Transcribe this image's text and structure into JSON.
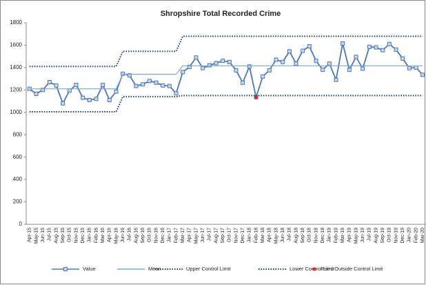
{
  "chart_data": {
    "type": "line",
    "title": "Shropshire Total Recorded Crime",
    "categories": [
      "Apr-15",
      "May-15",
      "Jun-15",
      "Jul-15",
      "Aug-15",
      "Sep-15",
      "Oct-15",
      "Nov-15",
      "Dec-15",
      "Jan-16",
      "Feb-16",
      "Mar-16",
      "Apr-16",
      "May-16",
      "Jun-16",
      "Jul-16",
      "Aug-16",
      "Sep-16",
      "Oct-16",
      "Nov-16",
      "Dec-16",
      "Jan-17",
      "Feb-17",
      "Mar-17",
      "Apr-17",
      "May-17",
      "Jun-17",
      "Jul-17",
      "Aug-17",
      "Sep-17",
      "Oct-17",
      "Nov-17",
      "Dec-17",
      "Jan-18",
      "Feb-18",
      "Mar-18",
      "Apr-18",
      "May-18",
      "Jun-18",
      "Jul-18",
      "Aug-18",
      "Sep-18",
      "Oct-18",
      "Nov-18",
      "Dec-18",
      "Jan-19",
      "Feb-19",
      "Mar-19",
      "Apr-19",
      "May-19",
      "Jun-19",
      "Jul-19",
      "Aug-19",
      "Sep-19",
      "Oct-19",
      "Nov-19",
      "Dec-19",
      "Jan-20",
      "Feb-20",
      "Mar-20"
    ],
    "series": [
      {
        "name": "Value",
        "color": "#4a76b8",
        "marker": "square",
        "values": [
          1210,
          1165,
          1200,
          1270,
          1240,
          1080,
          1195,
          1245,
          1130,
          1110,
          1120,
          1245,
          1110,
          1185,
          1345,
          1330,
          1235,
          1250,
          1280,
          1265,
          1240,
          1235,
          1170,
          1360,
          1405,
          1490,
          1395,
          1420,
          1440,
          1460,
          1450,
          1375,
          1265,
          1410,
          1135,
          1320,
          1375,
          1470,
          1450,
          1545,
          1435,
          1550,
          1590,
          1460,
          1380,
          1435,
          1290,
          1615,
          1380,
          1495,
          1390,
          1585,
          1580,
          1555,
          1610,
          1560,
          1480,
          1395,
          1400,
          1335
        ]
      },
      {
        "name": "Mean",
        "color": "#7aa6d8",
        "values": [
          1210,
          1210,
          1210,
          1210,
          1210,
          1210,
          1210,
          1210,
          1210,
          1210,
          1210,
          1210,
          1210,
          1210,
          1340,
          1340,
          1340,
          1340,
          1340,
          1340,
          1340,
          1340,
          1340,
          1415,
          1415,
          1415,
          1415,
          1415,
          1415,
          1415,
          1415,
          1415,
          1415,
          1415,
          1415,
          1415,
          1415,
          1415,
          1415,
          1415,
          1415,
          1415,
          1415,
          1415,
          1415,
          1415,
          1415,
          1415,
          1415,
          1415,
          1415,
          1415,
          1415,
          1415,
          1415,
          1415,
          1415,
          1415,
          1415,
          1415
        ]
      },
      {
        "name": "Upper Control Limit",
        "color": "#1f3864",
        "dash": "dotted",
        "values": [
          1410,
          1410,
          1410,
          1410,
          1410,
          1410,
          1410,
          1410,
          1410,
          1410,
          1410,
          1410,
          1410,
          1410,
          1545,
          1545,
          1545,
          1545,
          1545,
          1545,
          1545,
          1545,
          1545,
          1680,
          1680,
          1680,
          1680,
          1680,
          1680,
          1680,
          1680,
          1680,
          1680,
          1680,
          1680,
          1680,
          1680,
          1680,
          1680,
          1680,
          1680,
          1680,
          1680,
          1680,
          1680,
          1680,
          1680,
          1680,
          1680,
          1680,
          1680,
          1680,
          1680,
          1680,
          1680,
          1680,
          1680,
          1680,
          1680,
          1680
        ]
      },
      {
        "name": "Lower Control Limit",
        "color": "#1f3864",
        "dash": "dotted",
        "values": [
          1005,
          1005,
          1005,
          1005,
          1005,
          1005,
          1005,
          1005,
          1005,
          1005,
          1005,
          1005,
          1005,
          1005,
          1140,
          1140,
          1140,
          1140,
          1140,
          1140,
          1140,
          1140,
          1140,
          1150,
          1150,
          1150,
          1150,
          1150,
          1150,
          1150,
          1150,
          1150,
          1150,
          1150,
          1150,
          1150,
          1150,
          1150,
          1150,
          1150,
          1150,
          1150,
          1150,
          1150,
          1150,
          1150,
          1150,
          1150,
          1150,
          1150,
          1150,
          1150,
          1150,
          1150,
          1150,
          1150,
          1150,
          1150,
          1150,
          1150
        ]
      },
      {
        "name": "Point Outside Control Limit",
        "color": "#e8202a",
        "marker": "dot",
        "line": false,
        "values": [
          null,
          null,
          null,
          null,
          null,
          null,
          null,
          null,
          null,
          null,
          null,
          null,
          null,
          null,
          null,
          null,
          null,
          null,
          null,
          null,
          null,
          null,
          null,
          null,
          null,
          null,
          null,
          null,
          null,
          null,
          null,
          null,
          null,
          null,
          1135,
          null,
          null,
          null,
          null,
          null,
          null,
          null,
          null,
          null,
          null,
          null,
          null,
          null,
          null,
          null,
          null,
          null,
          null,
          null,
          null,
          null,
          null,
          null,
          null,
          null
        ]
      }
    ],
    "ylim": [
      0,
      1800
    ],
    "yticks": [
      0,
      200,
      400,
      600,
      800,
      1000,
      1200,
      1400,
      1600,
      1800
    ],
    "legend": "bottom"
  }
}
